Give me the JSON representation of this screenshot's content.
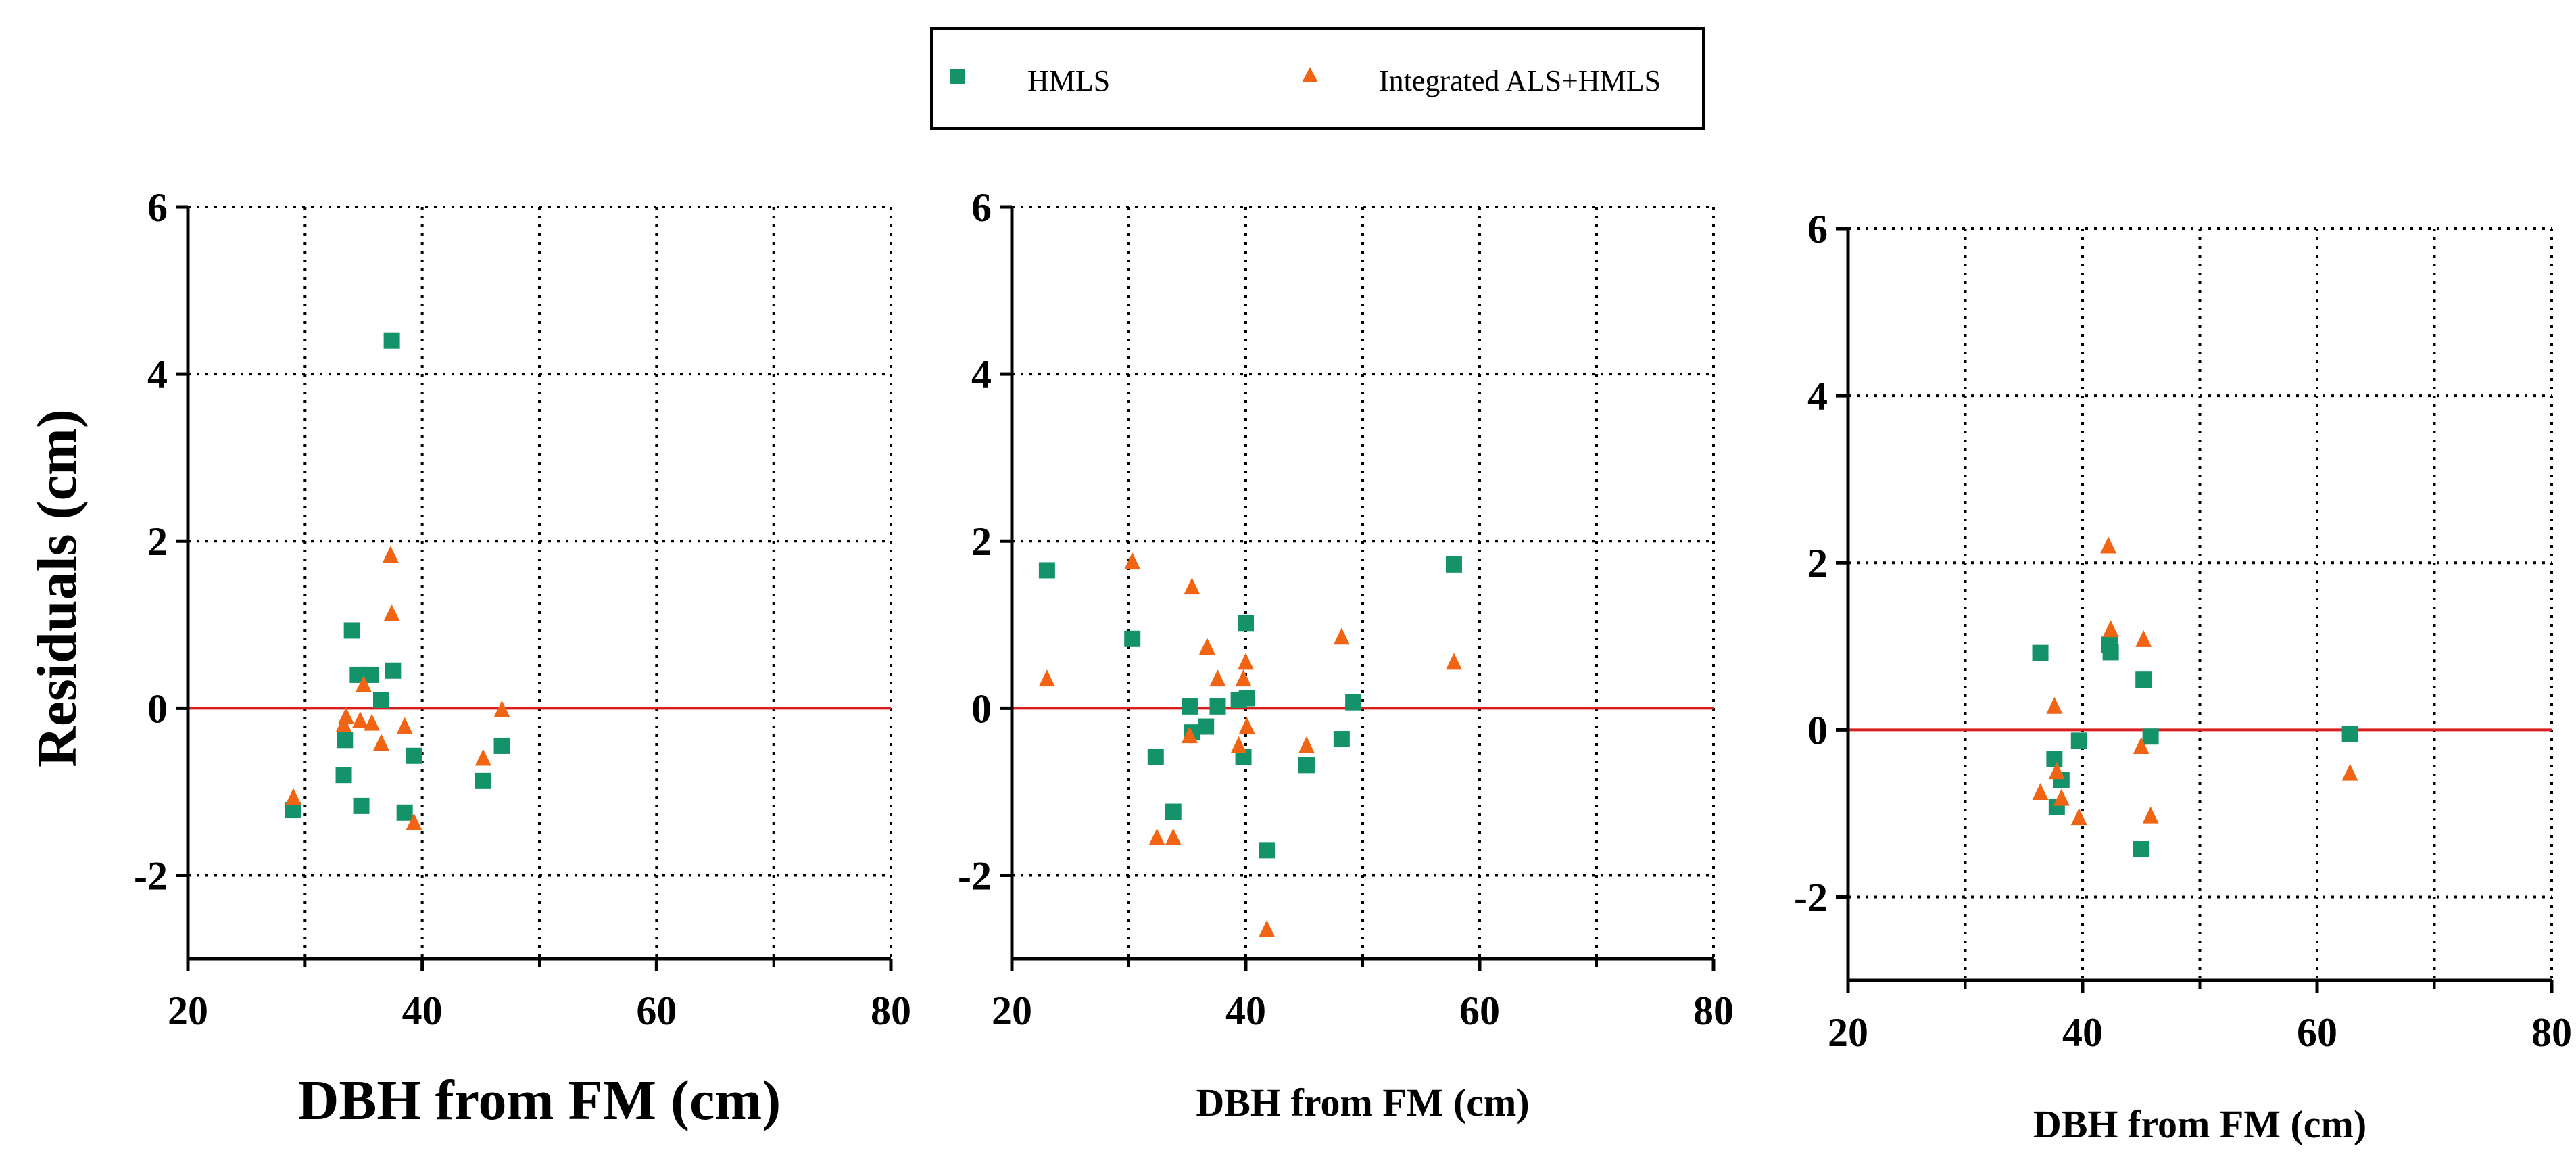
{
  "legend": {
    "items": [
      {
        "label": "HMLS",
        "color": "#14936b",
        "marker": "square"
      },
      {
        "label": "Integrated ALS+HMLS",
        "color": "#f06414",
        "marker": "triangle"
      }
    ]
  },
  "ylabel": "Residuals (cm)",
  "colors": {
    "hmls": "#14936b",
    "integrated": "#f06414",
    "zero_line": "#d81e1e",
    "grid": "#000000"
  },
  "chart_data": [
    {
      "type": "scatter",
      "xlabel": "DBH from FM (cm)",
      "ylabel": "Residuals (cm)",
      "xlim": [
        20,
        80
      ],
      "ylim": [
        -3,
        6
      ],
      "x_ticks": [
        "20",
        "40",
        "60",
        "80"
      ],
      "y_ticks": [
        "-2",
        "0",
        "2",
        "4",
        "6"
      ],
      "grid": true,
      "reference_line": 0,
      "series": [
        {
          "name": "HMLS",
          "points": [
            [
              29,
              -1.22
            ],
            [
              33.3,
              -0.8
            ],
            [
              33.4,
              -0.38
            ],
            [
              34,
              0.93
            ],
            [
              34.5,
              0.4
            ],
            [
              34.8,
              -1.17
            ],
            [
              35.6,
              0.4
            ],
            [
              36.5,
              0.1
            ],
            [
              37.4,
              4.4
            ],
            [
              37.5,
              0.45
            ],
            [
              38.5,
              -1.25
            ],
            [
              39.3,
              -0.57
            ],
            [
              45.2,
              -0.87
            ],
            [
              46.8,
              -0.45
            ]
          ]
        },
        {
          "name": "Integrated ALS+HMLS",
          "points": [
            [
              29,
              -1.07
            ],
            [
              33.3,
              -0.2
            ],
            [
              33.5,
              -0.1
            ],
            [
              34.7,
              -0.15
            ],
            [
              35,
              0.28
            ],
            [
              35.7,
              -0.18
            ],
            [
              36.5,
              -0.42
            ],
            [
              37.3,
              1.83
            ],
            [
              37.4,
              1.13
            ],
            [
              38.5,
              -0.22
            ],
            [
              39.3,
              -1.37
            ],
            [
              45.2,
              -0.6
            ],
            [
              46.8,
              -0.02
            ]
          ]
        }
      ]
    },
    {
      "type": "scatter",
      "xlabel": "DBH from FM (cm)",
      "ylabel": "",
      "xlim": [
        20,
        80
      ],
      "ylim": [
        -3,
        6
      ],
      "x_ticks": [
        "20",
        "40",
        "60",
        "80"
      ],
      "y_ticks": [
        "-2",
        "0",
        "2",
        "4",
        "6"
      ],
      "grid": true,
      "reference_line": 0,
      "series": [
        {
          "name": "HMLS",
          "points": [
            [
              23,
              1.65
            ],
            [
              30.3,
              0.83
            ],
            [
              32.3,
              -0.58
            ],
            [
              33.8,
              -1.24
            ],
            [
              35.2,
              0.02
            ],
            [
              35.4,
              -0.29
            ],
            [
              36.6,
              -0.22
            ],
            [
              37.6,
              0.02
            ],
            [
              39.4,
              0.1
            ],
            [
              39.8,
              -0.58
            ],
            [
              40,
              1.02
            ],
            [
              40.1,
              0.12
            ],
            [
              41.8,
              -1.7
            ],
            [
              45.2,
              -0.68
            ],
            [
              48.2,
              -0.37
            ],
            [
              49.2,
              0.07
            ],
            [
              57.8,
              1.72
            ]
          ]
        },
        {
          "name": "Integrated ALS+HMLS",
          "points": [
            [
              23,
              0.35
            ],
            [
              30.3,
              1.75
            ],
            [
              32.4,
              -1.55
            ],
            [
              33.8,
              -1.55
            ],
            [
              35.2,
              -0.33
            ],
            [
              35.4,
              1.45
            ],
            [
              36.7,
              0.73
            ],
            [
              37.6,
              0.35
            ],
            [
              39.4,
              -0.45
            ],
            [
              39.8,
              0.35
            ],
            [
              40,
              0.55
            ],
            [
              40.1,
              -0.22
            ],
            [
              41.8,
              -2.65
            ],
            [
              45.2,
              -0.45
            ],
            [
              48.2,
              0.85
            ],
            [
              57.8,
              0.55
            ]
          ]
        }
      ]
    },
    {
      "type": "scatter",
      "xlabel": "DBH from FM (cm)",
      "ylabel": "",
      "xlim": [
        20,
        80
      ],
      "ylim": [
        -3,
        6
      ],
      "x_ticks": [
        "20",
        "40",
        "60",
        "80"
      ],
      "y_ticks": [
        "-2",
        "0",
        "2",
        "4",
        "6"
      ],
      "grid": true,
      "reference_line": 0,
      "series": [
        {
          "name": "HMLS",
          "points": [
            [
              36.4,
              0.92
            ],
            [
              37.6,
              -0.35
            ],
            [
              37.8,
              -0.92
            ],
            [
              38.2,
              -0.6
            ],
            [
              39.7,
              -0.13
            ],
            [
              42.3,
              1.02
            ],
            [
              42.4,
              0.93
            ],
            [
              45,
              -1.43
            ],
            [
              45.2,
              0.6
            ],
            [
              45.8,
              -0.08
            ],
            [
              62.8,
              -0.05
            ]
          ]
        },
        {
          "name": "Integrated ALS+HMLS",
          "points": [
            [
              36.4,
              -0.75
            ],
            [
              37.6,
              0.28
            ],
            [
              37.8,
              -0.5
            ],
            [
              38.2,
              -0.82
            ],
            [
              39.7,
              -1.05
            ],
            [
              42.2,
              2.2
            ],
            [
              42.4,
              1.2
            ],
            [
              45,
              -0.2
            ],
            [
              45.2,
              1.08
            ],
            [
              45.8,
              -1.03
            ],
            [
              62.8,
              -0.52
            ]
          ]
        }
      ]
    }
  ]
}
